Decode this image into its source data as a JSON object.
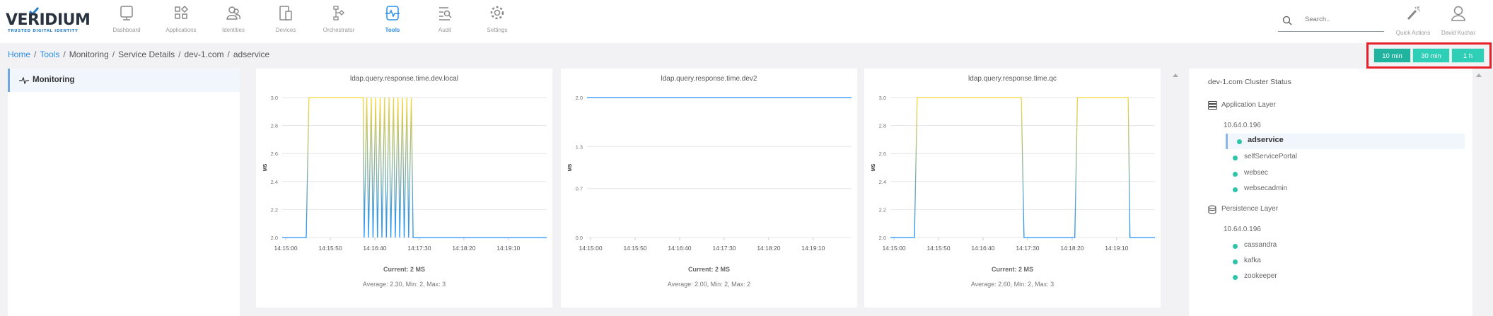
{
  "brand": {
    "name": "VERIDIUM",
    "tagline": "TRUSTED DIGITAL IDENTITY"
  },
  "nav": [
    {
      "label": "Dashboard",
      "icon": "monitor-icon"
    },
    {
      "label": "Applications",
      "icon": "apps-icon"
    },
    {
      "label": "Identities",
      "icon": "users-icon"
    },
    {
      "label": "Devices",
      "icon": "devices-icon"
    },
    {
      "label": "Orchestrator",
      "icon": "flow-icon"
    },
    {
      "label": "Tools",
      "icon": "pulse-icon",
      "active": true
    },
    {
      "label": "Audit",
      "icon": "audit-search-icon"
    },
    {
      "label": "Settings",
      "icon": "gear-icon"
    }
  ],
  "search": {
    "placeholder": "Search.."
  },
  "quick_actions": {
    "label": "Quick Actions"
  },
  "user": {
    "name": "David Kuchar"
  },
  "breadcrumb": [
    "Home",
    "Tools",
    "Monitoring",
    "Service Details",
    "dev-1.com",
    "adservice"
  ],
  "time_range": {
    "options": [
      "10 min",
      "30 min",
      "1 h"
    ],
    "selected": "10 min"
  },
  "sidebar": {
    "items": [
      {
        "label": "Monitoring",
        "active": true
      }
    ]
  },
  "colors": {
    "accent": "#2b8fe8",
    "teal": "#2ecfb6",
    "highlight": "#e8202a",
    "line_high": "#f5d63d",
    "line_low": "#1e90ff"
  },
  "chart_data": [
    {
      "type": "line",
      "title": "ldap.query.response.time.dev.local",
      "ylabel": "MS",
      "ylim": [
        2.0,
        3.0
      ],
      "yticks": [
        "2.0",
        "2.2",
        "2.4",
        "2.6",
        "2.8",
        "3.0"
      ],
      "xticks": [
        "14:15:00",
        "14:15:50",
        "14:16:40",
        "14:17:30",
        "14:18:20",
        "14:19:10"
      ],
      "xlim": [
        "14:14:56",
        "14:19:53"
      ],
      "grid": true,
      "points": [
        [
          "14:14:56",
          2
        ],
        [
          "14:15:23",
          2
        ],
        [
          "14:15:26",
          3
        ],
        [
          "14:16:27",
          3
        ],
        [
          "14:16:28",
          2
        ],
        [
          "14:16:31",
          3
        ],
        [
          "14:16:33",
          2
        ],
        [
          "14:16:36",
          3
        ],
        [
          "14:16:38",
          2
        ],
        [
          "14:16:41",
          3
        ],
        [
          "14:16:43",
          2
        ],
        [
          "14:16:46",
          3
        ],
        [
          "14:16:48",
          2
        ],
        [
          "14:16:51",
          3
        ],
        [
          "14:16:53",
          2
        ],
        [
          "14:16:56",
          3
        ],
        [
          "14:16:58",
          2
        ],
        [
          "14:17:01",
          3
        ],
        [
          "14:17:03",
          2
        ],
        [
          "14:17:06",
          3
        ],
        [
          "14:17:08",
          2
        ],
        [
          "14:17:11",
          3
        ],
        [
          "14:17:13",
          2
        ],
        [
          "14:17:16",
          3
        ],
        [
          "14:17:18",
          2
        ],
        [
          "14:17:21",
          3
        ],
        [
          "14:17:23",
          2
        ],
        [
          "14:19:53",
          2
        ]
      ],
      "current": "Current: 2 MS",
      "stats": "Average: 2.30, Min: 2, Max: 3"
    },
    {
      "type": "line",
      "title": "ldap.query.response.time.dev2",
      "ylabel": "MS",
      "ylim": [
        0.0,
        2.0
      ],
      "yticks": [
        "0.0",
        "0.7",
        "1.3",
        "2.0"
      ],
      "xticks": [
        "14:15:00",
        "14:15:50",
        "14:16:40",
        "14:17:30",
        "14:18:20",
        "14:19:10"
      ],
      "xlim": [
        "14:14:56",
        "14:19:53"
      ],
      "grid": true,
      "points": [
        [
          "14:14:56",
          2
        ],
        [
          "14:19:53",
          2
        ]
      ],
      "current": "Current: 2 MS",
      "stats": "Average: 2.00, Min: 2, Max: 2"
    },
    {
      "type": "line",
      "title": "ldap.query.response.time.qc",
      "ylabel": "MS",
      "ylim": [
        2.0,
        3.0
      ],
      "yticks": [
        "2.0",
        "2.2",
        "2.4",
        "2.6",
        "2.8",
        "3.0"
      ],
      "xticks": [
        "14:15:00",
        "14:15:50",
        "14:16:40",
        "14:17:30",
        "14:18:20",
        "14:19:10"
      ],
      "xlim": [
        "14:14:56",
        "14:19:53"
      ],
      "grid": true,
      "points": [
        [
          "14:14:56",
          2
        ],
        [
          "14:15:23",
          2
        ],
        [
          "14:15:26",
          3
        ],
        [
          "14:17:23",
          3
        ],
        [
          "14:17:26",
          2
        ],
        [
          "14:18:23",
          2
        ],
        [
          "14:18:26",
          3
        ],
        [
          "14:19:23",
          3
        ],
        [
          "14:19:25",
          2
        ],
        [
          "14:19:53",
          2
        ]
      ],
      "current": "Current: 2 MS",
      "stats": "Average: 2.60, Min: 2, Max: 3"
    }
  ],
  "cluster": {
    "title": "dev-1.com Cluster Status",
    "layers": [
      {
        "name": "Application Layer",
        "icon": "server-stack-icon",
        "ip": "10.64.0.196",
        "services": [
          "adservice",
          "selfServicePortal",
          "websec",
          "websecadmin"
        ],
        "active": "adservice"
      },
      {
        "name": "Persistence Layer",
        "icon": "database-icon",
        "ip": "10.64.0.196",
        "services": [
          "cassandra",
          "kafka",
          "zookeeper"
        ]
      }
    ]
  }
}
